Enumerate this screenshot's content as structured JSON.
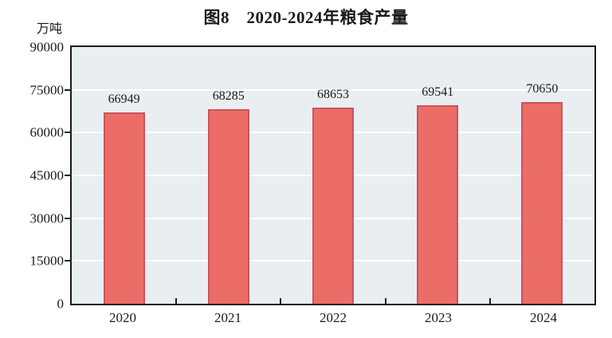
{
  "chart_data": {
    "type": "bar",
    "title": "图8　2020-2024年粮食产量",
    "unit_label": "万吨",
    "categories": [
      "2020",
      "2021",
      "2022",
      "2023",
      "2024"
    ],
    "values": [
      66949,
      68285,
      68653,
      69541,
      70650
    ],
    "xlabel": "",
    "ylabel": "万吨",
    "ylim": [
      0,
      90000
    ],
    "yticks": [
      0,
      15000,
      30000,
      45000,
      60000,
      75000,
      90000
    ],
    "grid": "horizontal",
    "legend": "none",
    "colors": {
      "bar_fill": "#ec6d68",
      "bar_border": "#c9545c",
      "plot_background": "#e9eef0",
      "gridline": "#ffffff",
      "axis": "#1c1c1c",
      "text": "#1a1a1a"
    }
  }
}
